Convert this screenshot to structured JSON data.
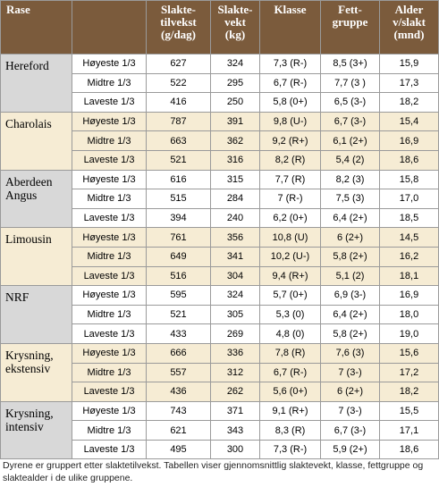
{
  "header": {
    "rase": "Rase",
    "columns": [
      [
        "Slakte-",
        "tilvekst",
        "(g/dag)"
      ],
      [
        "Slakte-",
        "vekt",
        "(kg)"
      ],
      [
        "Klasse"
      ],
      [
        "Fett-",
        "gruppe"
      ],
      [
        "Alder",
        "v/slakt",
        "(mnd)"
      ]
    ]
  },
  "groups": [
    {
      "breed": [
        "Hereford"
      ],
      "rows": [
        [
          "Høyeste 1/3",
          "627",
          "324",
          "7,3 (R-)",
          "8,5 (3+)",
          "15,9"
        ],
        [
          "Midtre 1/3",
          "522",
          "295",
          "6,7 (R-)",
          "7,7 (3 )",
          "17,3"
        ],
        [
          "Laveste 1/3",
          "416",
          "250",
          "5,8 (0+)",
          "6,5 (3-)",
          "18,2"
        ]
      ]
    },
    {
      "breed": [
        "Charolais"
      ],
      "rows": [
        [
          "Høyeste 1/3",
          "787",
          "391",
          "9,8 (U-)",
          "6,7 (3-)",
          "15,4"
        ],
        [
          "Midtre 1/3",
          "663",
          "362",
          "9,2 (R+)",
          "6,1 (2+)",
          "16,9"
        ],
        [
          "Laveste 1/3",
          "521",
          "316",
          "8,2 (R)",
          "5,4 (2)",
          "18,6"
        ]
      ]
    },
    {
      "breed": [
        "Aberdeen",
        "Angus"
      ],
      "rows": [
        [
          "Høyeste 1/3",
          "616",
          "315",
          "7,7 (R)",
          "8,2 (3)",
          "15,8"
        ],
        [
          "Midtre 1/3",
          "515",
          "284",
          "7 (R-)",
          "7,5 (3)",
          "17,0"
        ],
        [
          "Laveste 1/3",
          "394",
          "240",
          "6,2 (0+)",
          "6,4 (2+)",
          "18,5"
        ]
      ]
    },
    {
      "breed": [
        "Limousin"
      ],
      "rows": [
        [
          "Høyeste 1/3",
          "761",
          "356",
          "10,8 (U)",
          "6 (2+)",
          "14,5"
        ],
        [
          "Midtre 1/3",
          "649",
          "341",
          "10,2 (U-)",
          "5,8 (2+)",
          "16,2"
        ],
        [
          "Laveste 1/3",
          "516",
          "304",
          "9,4 (R+)",
          "5,1 (2)",
          "18,1"
        ]
      ]
    },
    {
      "breed": [
        "NRF"
      ],
      "rows": [
        [
          "Høyeste 1/3",
          "595",
          "324",
          "5,7 (0+)",
          "6,9 (3-)",
          "16,9"
        ],
        [
          "Midtre 1/3",
          "521",
          "305",
          "5,3 (0)",
          "6,4 (2+)",
          "18,0"
        ],
        [
          "Laveste 1/3",
          "433",
          "269",
          "4,8 (0)",
          "5,8 (2+)",
          "19,0"
        ]
      ]
    },
    {
      "breed": [
        "Krysning,",
        "ekstensiv"
      ],
      "rows": [
        [
          "Høyeste 1/3",
          "666",
          "336",
          "7,8 (R)",
          "7,6 (3)",
          "15,6"
        ],
        [
          "Midtre 1/3",
          "557",
          "312",
          "6,7 (R-)",
          "7 (3-)",
          "17,2"
        ],
        [
          "Laveste 1/3",
          "436",
          "262",
          "5,6 (0+)",
          "6 (2+)",
          "18,2"
        ]
      ]
    },
    {
      "breed": [
        "Krysning,",
        "intensiv"
      ],
      "rows": [
        [
          "Høyeste 1/3",
          "743",
          "371",
          "9,1 (R+)",
          "7 (3-)",
          "15,5"
        ],
        [
          "Midtre 1/3",
          "621",
          "343",
          "8,3 (R)",
          "6,7 (3-)",
          "17,1"
        ],
        [
          "Laveste 1/3",
          "495",
          "300",
          "7,3 (R-)",
          "5,9 (2+)",
          "18,6"
        ]
      ]
    }
  ],
  "caption": [
    "Dyrene er gruppert etter slaktetilvekst. Tabellen viser gjennomsnittlig slaktevekt, klasse, fettgruppe og",
    "slaktealder i de ulike gruppene."
  ]
}
